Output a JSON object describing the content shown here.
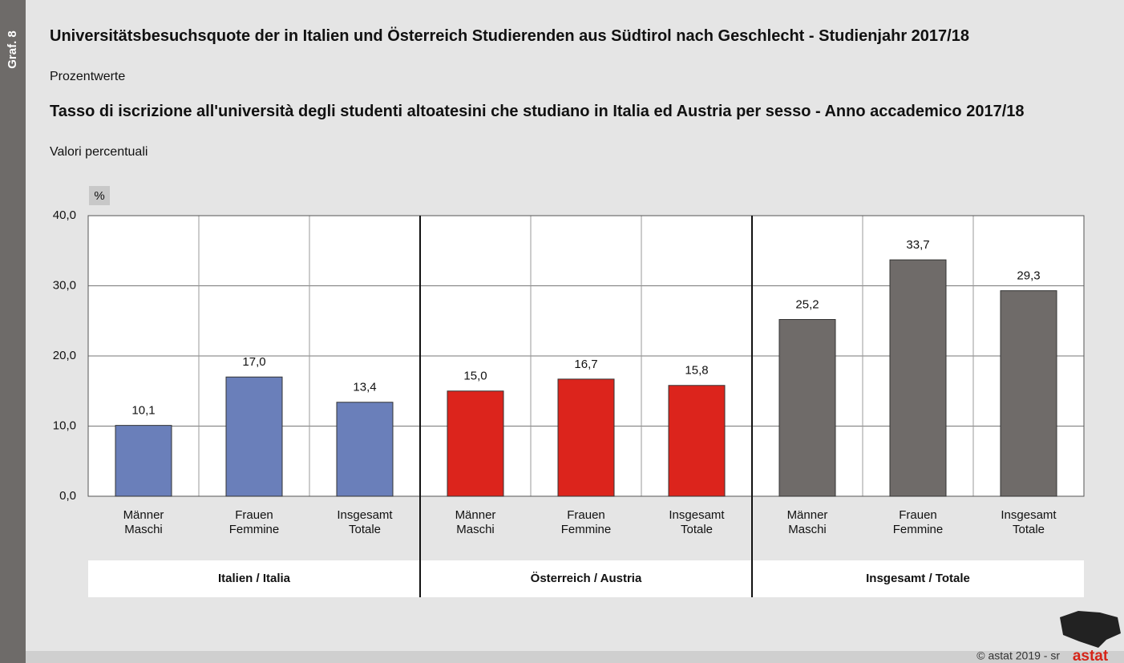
{
  "chart_data": {
    "type": "bar",
    "figure_label": "Graf. 8",
    "title": "Universitätsbesuchsquote der in Italien und Österreich Studierenden aus Südtirol nach Geschlecht - Studienjahr 2017/18",
    "subtitle": "Prozentwerte",
    "title_it": "Tasso di iscrizione all'università degli studenti altoatesini che studiano in Italia ed Austria per sesso - Anno accademico 2017/18",
    "subtitle_it": "Valori percentuali",
    "unit": "%",
    "categories": [
      [
        "Männer",
        "Maschi"
      ],
      [
        "Frauen",
        "Femmine"
      ],
      [
        "Insgesamt",
        "Totale"
      ]
    ],
    "series": [
      {
        "name": "Italien / Italia",
        "color": "#6a7fba",
        "values": [
          10.1,
          17.0,
          13.4
        ],
        "value_labels": [
          "10,1",
          "17,0",
          "13,4"
        ]
      },
      {
        "name": "Österreich / Austria",
        "color": "#dc241c",
        "values": [
          15.0,
          16.7,
          15.8
        ],
        "value_labels": [
          "15,0",
          "16,7",
          "15,8"
        ]
      },
      {
        "name": "Insgesamt / Totale",
        "color": "#6f6b69",
        "values": [
          25.2,
          33.7,
          29.3
        ],
        "value_labels": [
          "25,2",
          "33,7",
          "29,3"
        ]
      }
    ],
    "ylim": [
      0,
      40
    ],
    "yticks": [
      {
        "value": 0,
        "label": "0,0"
      },
      {
        "value": 10,
        "label": "10,0"
      },
      {
        "value": 20,
        "label": "20,0"
      },
      {
        "value": 30,
        "label": "30,0"
      },
      {
        "value": 40,
        "label": "40,0"
      }
    ],
    "grid": true,
    "source": "© astat 2019 - sr",
    "logo": "astat"
  }
}
